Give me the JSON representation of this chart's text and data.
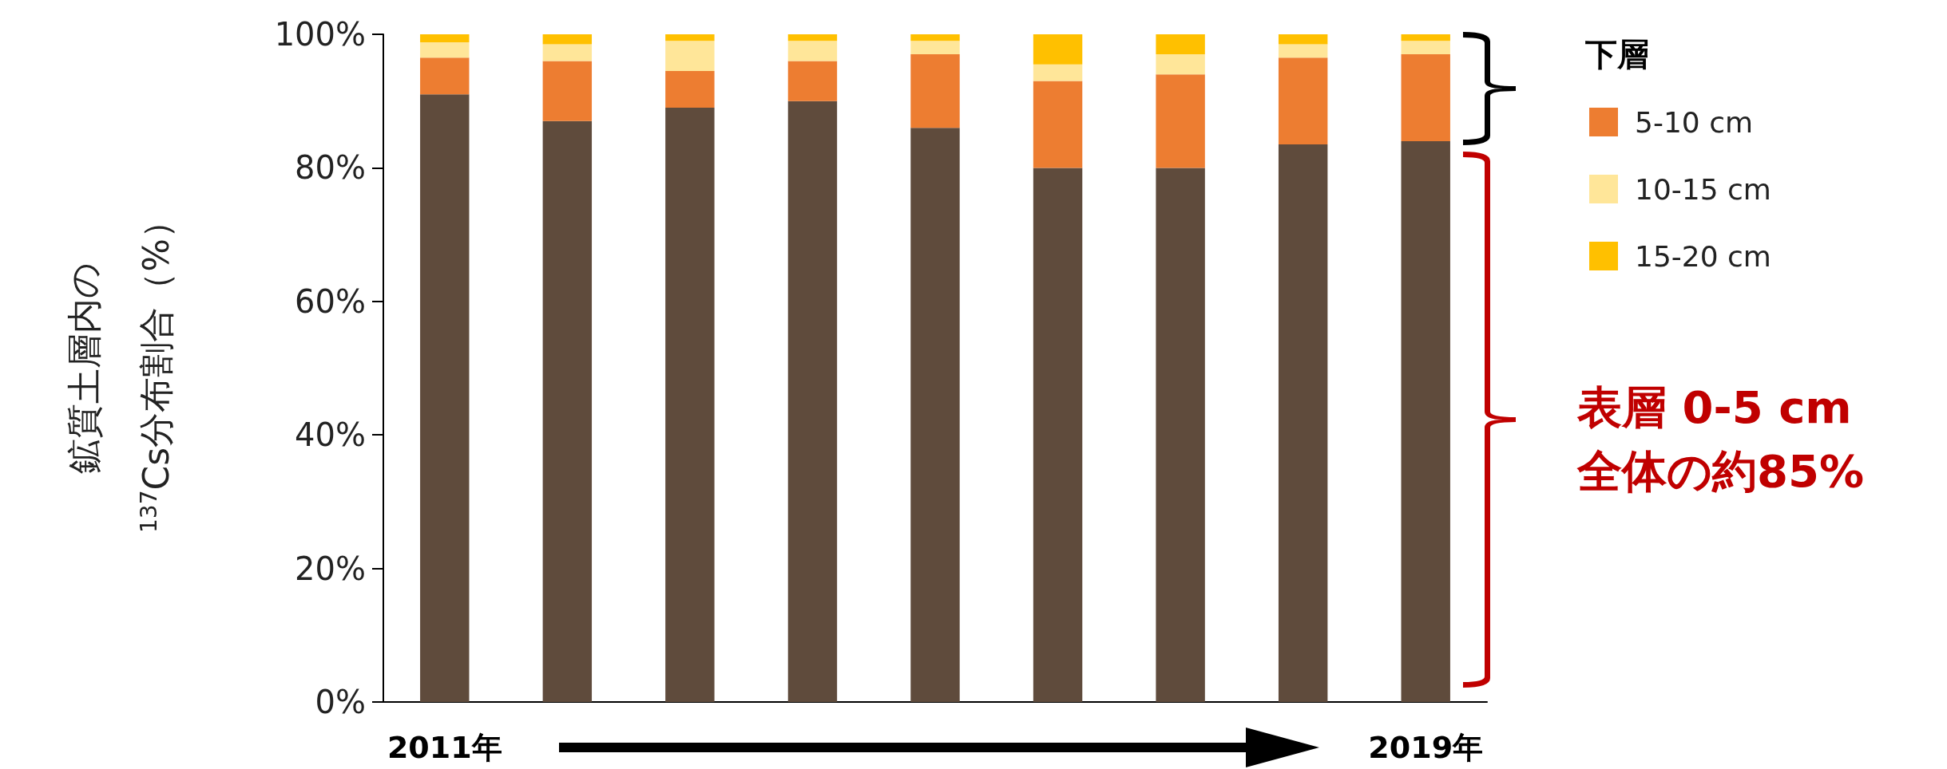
{
  "chart_data": {
    "type": "bar",
    "stacked": true,
    "categories": [
      "2011年",
      null,
      null,
      null,
      null,
      null,
      null,
      null,
      "2019年"
    ],
    "ylabel": "鉱質土層内の\n$^{137}$Cs分布割合（%）",
    "legend_title": "下層",
    "ylim": [
      0,
      100
    ],
    "yticks": [
      {
        "value": 0,
        "label": "0%"
      },
      {
        "value": 20,
        "label": "20%"
      },
      {
        "value": 40,
        "label": "40%"
      },
      {
        "value": 60,
        "label": "60%"
      },
      {
        "value": 80,
        "label": "80%"
      },
      {
        "value": 100,
        "label": "100%"
      }
    ],
    "series": [
      {
        "color": "#5f4b3c",
        "values": [
          91,
          87,
          89,
          90,
          86,
          80,
          80,
          83.5,
          84
        ]
      },
      {
        "name": "5-10 cm",
        "color": "#ed7d31",
        "values": [
          5.5,
          9,
          5.5,
          6,
          11,
          13,
          14,
          13,
          13
        ]
      },
      {
        "name": "10-15 cm",
        "color": "#ffe699",
        "values": [
          2.3,
          2.5,
          4.5,
          3,
          2,
          2.5,
          3,
          2,
          2
        ]
      },
      {
        "name": "15-20 cm",
        "color": "#ffc000",
        "values": [
          1.2,
          1.5,
          1,
          1,
          1,
          4.5,
          3,
          1.5,
          1
        ]
      }
    ],
    "legend": "top right",
    "grid": false,
    "annotations": [
      "表層 0-5 cm\n全体の約85%"
    ]
  }
}
